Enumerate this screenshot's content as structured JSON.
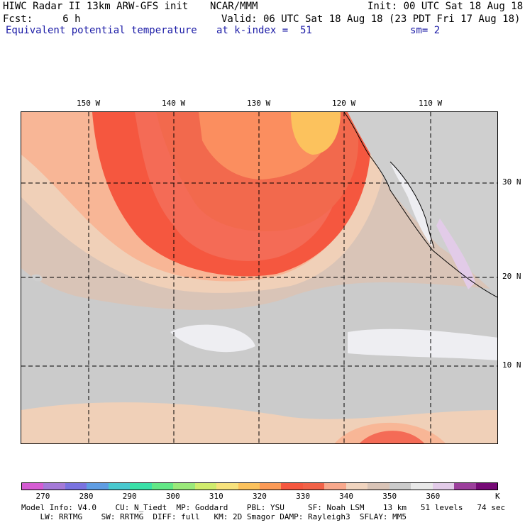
{
  "header": {
    "title": "HIWC Radar II 13km ARW-GFS init",
    "org": "NCAR/MMM",
    "init": "Init: 00 UTC Sat 18 Aug 18",
    "fcst": "Fcst:     6 h",
    "valid": "Valid: 06 UTC Sat 18 Aug 18 (23 PDT Fri 17 Aug 18)",
    "field": "Equivalent potential temperature",
    "level": "at k-index =  51",
    "smooth": "sm= 2"
  },
  "map": {
    "lon_labels": [
      "150 W",
      "140 W",
      "130 W",
      "120 W",
      "110 W"
    ],
    "lat_labels": [
      "30 N",
      "20 N",
      "10 N"
    ],
    "colors": {
      "c335": "#f46b56",
      "c325": "#f2694d",
      "c330": "#f5573f",
      "c320": "#fb8e5f",
      "c315": "#fcc25d",
      "c340": "#f8b696",
      "c345": "#f0d0b8",
      "c350": "#d9c4b7",
      "c355": "#cbcbcb",
      "c360": "#eeeef2",
      "c365": "#e2cbe8",
      "land": "#cfcfcf"
    }
  },
  "colorbar": {
    "colors": [
      "#d55cd3",
      "#a57ad8",
      "#7a73e0",
      "#5f9de3",
      "#49c9cf",
      "#39e0a7",
      "#62e786",
      "#9ae97a",
      "#d0ec6d",
      "#f7e27c",
      "#fcc25d",
      "#fb9a56",
      "#f5573f",
      "#f26248",
      "#f8a88c",
      "#f0d4bf",
      "#d9c4b7",
      "#cbcbcb",
      "#e8e8e8",
      "#e2cbe8",
      "#9c3f9c",
      "#760a76"
    ],
    "labels": [
      "270",
      "280",
      "290",
      "300",
      "310",
      "320",
      "330",
      "340",
      "350",
      "360"
    ],
    "unit": "K"
  },
  "footer": {
    "line1": "Model Info: V4.0    CU: N_Tiedt  MP: Goddard    PBL: YSU     SF: Noah LSM    13 km   51 levels   74 sec",
    "line2": "    LW: RRTMG    SW: RRTMG  DIFF: full   KM: 2D Smagor DAMP: Rayleigh3  SFLAY: MM5"
  }
}
